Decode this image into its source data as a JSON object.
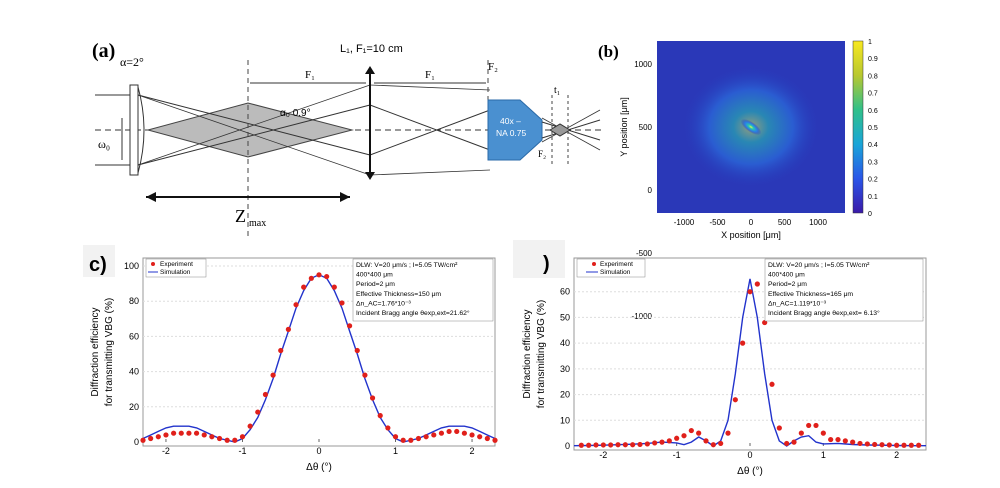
{
  "panel_a": {
    "label": "(a)",
    "alpha": "α=2°",
    "lens_label": "L₁, F₁=10 cm",
    "f1": "F₁",
    "f1b": "F₁",
    "f2": "F₂",
    "alpha0": "α₀ 0.9°",
    "omega0": "ω₀",
    "objective_line1": "40x –",
    "objective_line2": "NA 0.75",
    "t1": "t₁",
    "f2b": "F₂",
    "zmax": "Z",
    "zmax_sub": "max"
  },
  "panel_b": {
    "label": "(b)",
    "xlabel": "X position [μm]",
    "ylabel": "Y position [μm]",
    "xticks": [
      "-1000",
      "-500",
      "0",
      "500",
      "1000"
    ],
    "yticks": [
      "1000",
      "500",
      "0",
      "-500",
      "-1000"
    ],
    "cbar_ticks": [
      "1",
      "0.9",
      "0.8",
      "0.7",
      "0.6",
      "0.5",
      "0.4",
      "0.3",
      "0.2",
      "0.1",
      "0"
    ]
  },
  "panel_c": {
    "label": "c)",
    "legend_experiment": "Experiment",
    "legend_simulation": "Simulation",
    "info": [
      "DLW: V=20 μm/s ; I=5.05 TW/cm²",
      "400*400 μm",
      "Period=2 μm",
      "Effective Thickness=150 μm",
      "Δn_AC=1.76*10⁻³",
      "Incident Bragg angle θexp,ext=21.62°"
    ]
  },
  "panel_d": {
    "label": ")",
    "legend_experiment": "Experiment",
    "legend_simulation": "Simulation",
    "info": [
      "DLW: V=20 μm/s ; I=5.05 TW/cm²",
      "400*400 μm",
      "Period=2 μm",
      "Effective Thickness=165 μm",
      "Δn_AC=1.119*10⁻³",
      "Incident Bragg angle θexp,ext= 6.13°"
    ]
  },
  "colors": {
    "experiment": "#e0201b",
    "simulation": "#2233cc",
    "objective": "#4a90d0"
  },
  "chart_data": [
    {
      "type": "scatter",
      "title": "",
      "xlabel": "Δθ (°)",
      "ylabel": "Diffraction efficiency for transmitting VBG (%)",
      "xlim": [
        -2.3,
        2.3
      ],
      "ylim": [
        0,
        100
      ],
      "xticks": [
        -2,
        -1,
        0,
        1,
        2
      ],
      "yticks": [
        0,
        20,
        40,
        60,
        80,
        100
      ],
      "legend": "top-left",
      "series": [
        {
          "name": "Experiment",
          "x": [
            -2.3,
            -2.2,
            -2.1,
            -2.0,
            -1.9,
            -1.8,
            -1.7,
            -1.6,
            -1.5,
            -1.4,
            -1.3,
            -1.2,
            -1.1,
            -1.0,
            -0.9,
            -0.8,
            -0.7,
            -0.6,
            -0.5,
            -0.4,
            -0.3,
            -0.2,
            -0.1,
            0.0,
            0.1,
            0.2,
            0.3,
            0.4,
            0.5,
            0.6,
            0.7,
            0.8,
            0.9,
            1.0,
            1.1,
            1.2,
            1.3,
            1.4,
            1.5,
            1.6,
            1.7,
            1.8,
            1.9,
            2.0,
            2.1,
            2.2,
            2.3
          ],
          "y": [
            1,
            2,
            3,
            4,
            5,
            5,
            5,
            5,
            4,
            3,
            2,
            1,
            1,
            3,
            9,
            17,
            27,
            38,
            52,
            64,
            78,
            88,
            93,
            95,
            94,
            88,
            79,
            66,
            52,
            38,
            25,
            15,
            8,
            3,
            1,
            1,
            2,
            3,
            4,
            5,
            6,
            6,
            5,
            4,
            3,
            2,
            1
          ]
        },
        {
          "name": "Simulation",
          "x": [
            -2.3,
            -2.2,
            -2.1,
            -2.0,
            -1.9,
            -1.8,
            -1.7,
            -1.6,
            -1.5,
            -1.4,
            -1.3,
            -1.2,
            -1.1,
            -1.0,
            -0.9,
            -0.8,
            -0.7,
            -0.6,
            -0.5,
            -0.4,
            -0.3,
            -0.2,
            -0.1,
            0.0,
            0.1,
            0.2,
            0.3,
            0.4,
            0.5,
            0.6,
            0.7,
            0.8,
            0.9,
            1.0,
            1.1,
            1.2,
            1.3,
            1.4,
            1.5,
            1.6,
            1.7,
            1.8,
            1.9,
            2.0,
            2.1,
            2.2,
            2.3
          ],
          "y": [
            2,
            4,
            6,
            8,
            9,
            9,
            9,
            8,
            6,
            4,
            2,
            1,
            0,
            2,
            7,
            14,
            24,
            36,
            50,
            63,
            76,
            86,
            93,
            95,
            93,
            86,
            76,
            63,
            50,
            36,
            24,
            14,
            7,
            2,
            0,
            1,
            2,
            4,
            6,
            8,
            9,
            9,
            9,
            8,
            6,
            4,
            2
          ]
        }
      ]
    },
    {
      "type": "scatter",
      "title": "",
      "xlabel": "Δθ (°)",
      "ylabel": "Diffraction efficiency for transmitting VBG (%)",
      "xlim": [
        -2.4,
        2.4
      ],
      "ylim": [
        0,
        70
      ],
      "xticks": [
        -2,
        -1,
        0,
        1,
        2
      ],
      "yticks": [
        0,
        10,
        20,
        30,
        40,
        50,
        60
      ],
      "legend": "top-left",
      "series": [
        {
          "name": "Experiment",
          "x": [
            -2.3,
            -2.2,
            -2.1,
            -2.0,
            -1.9,
            -1.8,
            -1.7,
            -1.6,
            -1.5,
            -1.4,
            -1.3,
            -1.2,
            -1.1,
            -1.0,
            -0.9,
            -0.8,
            -0.7,
            -0.6,
            -0.5,
            -0.4,
            -0.3,
            -0.2,
            -0.1,
            0.0,
            0.1,
            0.2,
            0.3,
            0.4,
            0.5,
            0.6,
            0.7,
            0.8,
            0.9,
            1.0,
            1.1,
            1.2,
            1.3,
            1.4,
            1.5,
            1.6,
            1.7,
            1.8,
            1.9,
            2.0,
            2.1,
            2.2,
            2.3
          ],
          "y": [
            0.3,
            0.3,
            0.4,
            0.4,
            0.4,
            0.5,
            0.5,
            0.5,
            0.6,
            0.8,
            1.2,
            1.5,
            2,
            3,
            4,
            6,
            5,
            2,
            0.5,
            1,
            5,
            18,
            40,
            60,
            63,
            48,
            24,
            7,
            1,
            1.5,
            5,
            8,
            8,
            5,
            2.5,
            2.5,
            2,
            1.5,
            1,
            0.8,
            0.6,
            0.5,
            0.4,
            0.3,
            0.3,
            0.3,
            0.3
          ]
        },
        {
          "name": "Simulation",
          "x": [
            -2.4,
            -2.2,
            -2.0,
            -1.8,
            -1.6,
            -1.4,
            -1.2,
            -1.0,
            -0.9,
            -0.8,
            -0.7,
            -0.6,
            -0.5,
            -0.4,
            -0.3,
            -0.2,
            -0.1,
            0.0,
            0.1,
            0.2,
            0.3,
            0.4,
            0.5,
            0.6,
            0.7,
            0.8,
            0.9,
            1.0,
            1.2,
            1.4,
            1.6,
            1.8,
            2.0,
            2.2,
            2.4
          ],
          "y": [
            0.1,
            0.2,
            0.3,
            0.5,
            0.7,
            1,
            1.5,
            1.2,
            0.5,
            1.5,
            3.5,
            2,
            0,
            2,
            10,
            28,
            50,
            65,
            50,
            28,
            10,
            2,
            0,
            2,
            3.5,
            4,
            1.5,
            0.8,
            1,
            0.6,
            0.4,
            0.3,
            0.2,
            0.1,
            0.1
          ]
        }
      ]
    }
  ]
}
